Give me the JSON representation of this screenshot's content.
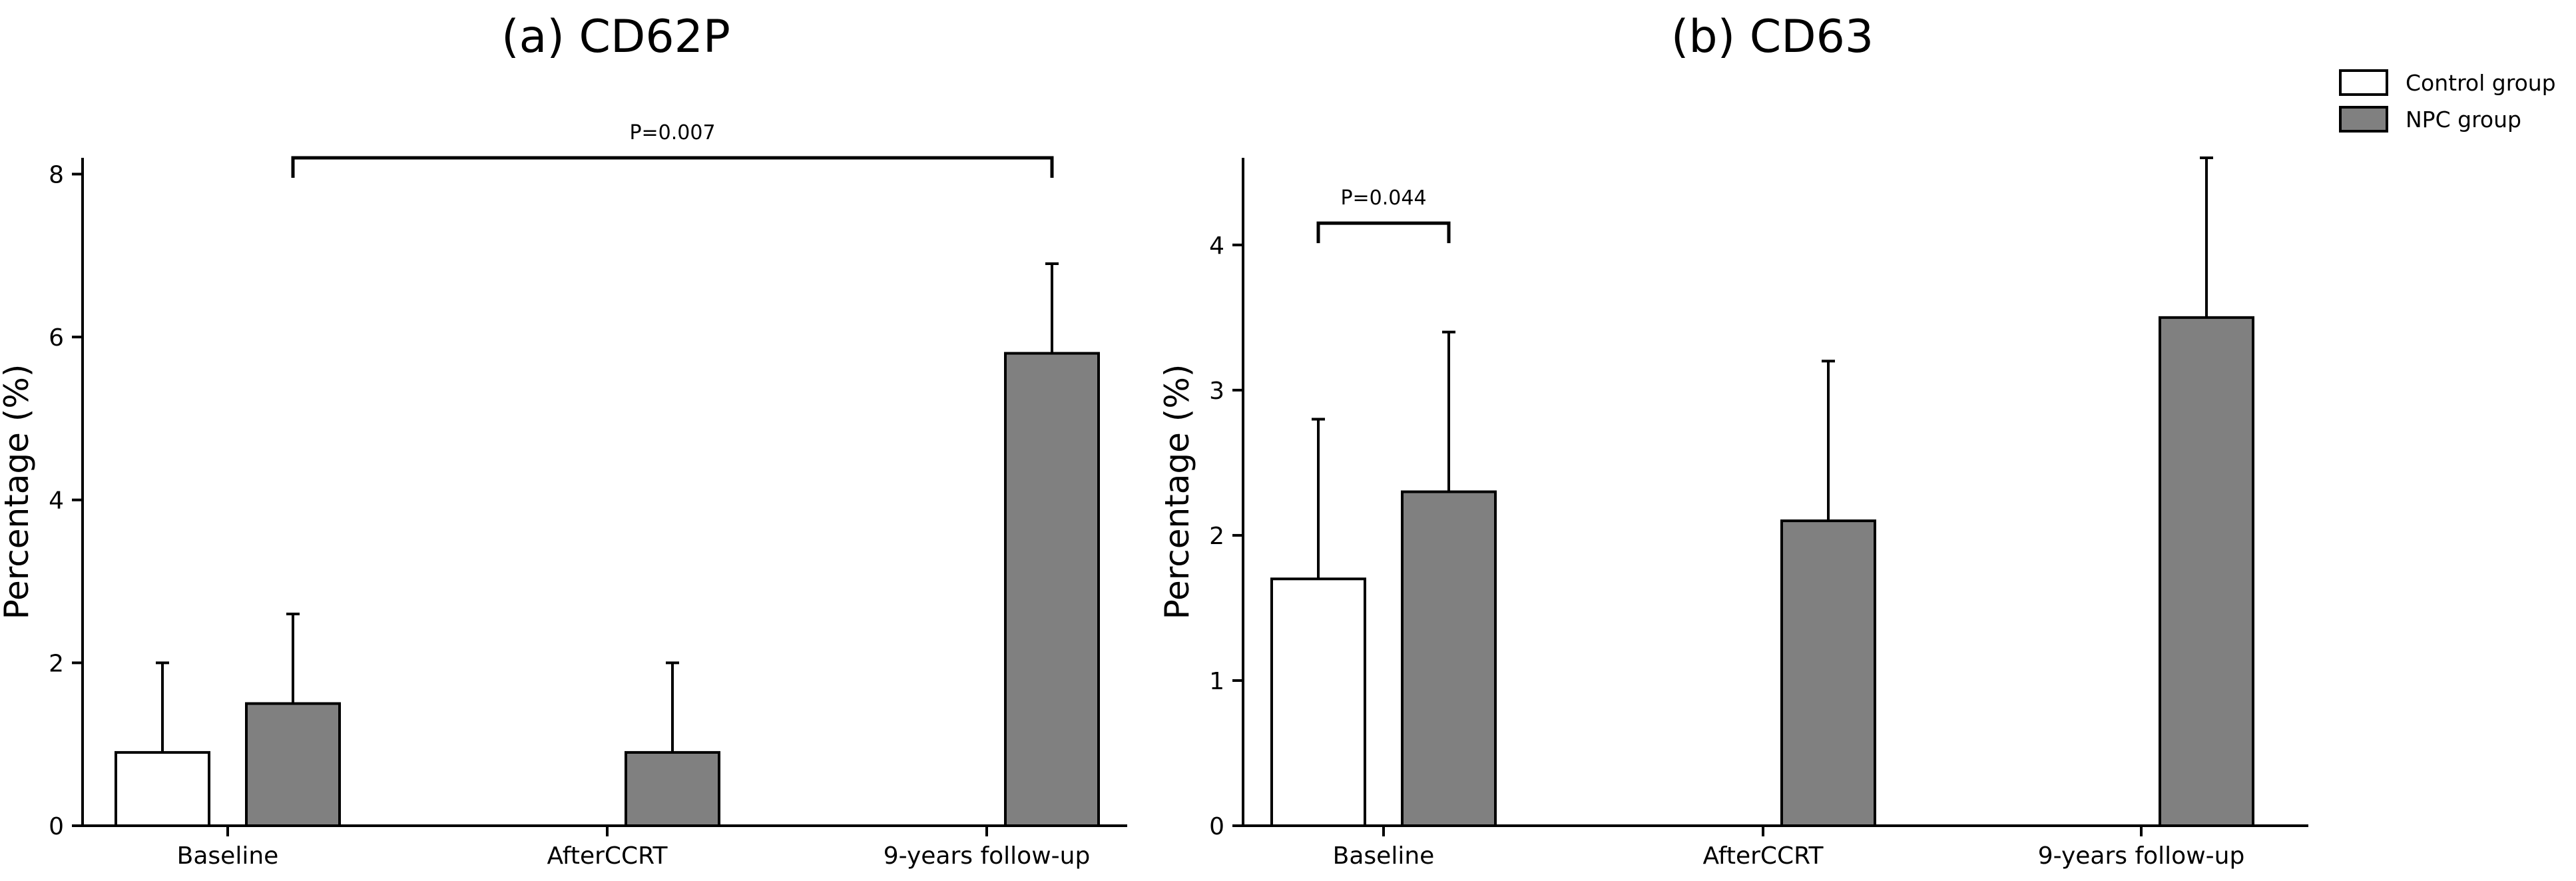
{
  "legend": [
    {
      "name": "Control group",
      "color": "#ffffff"
    },
    {
      "name": "NPC group",
      "color": "#808080"
    }
  ],
  "chart_data": [
    {
      "type": "bar",
      "title": "(a) CD62P",
      "xlabel": "",
      "ylabel": "Percentage (%)",
      "ylim": [
        0,
        8.2
      ],
      "yticks": [
        0,
        2,
        4,
        6,
        8
      ],
      "categories": [
        "Baseline",
        "AfterCCRT",
        "9-years follow-up"
      ],
      "series": [
        {
          "name": "Control group",
          "values": [
            0.9,
            null,
            null
          ],
          "errors": [
            1.1,
            null,
            null
          ]
        },
        {
          "name": "NPC group",
          "values": [
            1.5,
            0.9,
            5.8
          ],
          "errors": [
            1.1,
            1.1,
            1.1
          ]
        }
      ],
      "annotations": [
        {
          "text": "P=0.007",
          "from": {
            "category": 0,
            "series": 1
          },
          "to": {
            "category": 2,
            "series": 1
          },
          "bracket_y": 8.2
        }
      ]
    },
    {
      "type": "bar",
      "title": "(b) CD63",
      "xlabel": "",
      "ylabel": "Percentage (%)",
      "ylim": [
        0,
        4.6
      ],
      "yticks": [
        0,
        1,
        2,
        3,
        4
      ],
      "categories": [
        "Baseline",
        "AfterCCRT",
        "9-years follow-up"
      ],
      "series": [
        {
          "name": "Control group",
          "values": [
            1.7,
            null,
            null
          ],
          "errors": [
            1.1,
            null,
            null
          ]
        },
        {
          "name": "NPC group",
          "values": [
            2.3,
            2.1,
            3.5
          ],
          "errors": [
            1.1,
            1.1,
            1.1
          ]
        }
      ],
      "annotations": [
        {
          "text": "P=0.044",
          "from": {
            "category": 0,
            "series": 0
          },
          "to": {
            "category": 0,
            "series": 1
          },
          "bracket_y": 4.15
        }
      ]
    }
  ]
}
